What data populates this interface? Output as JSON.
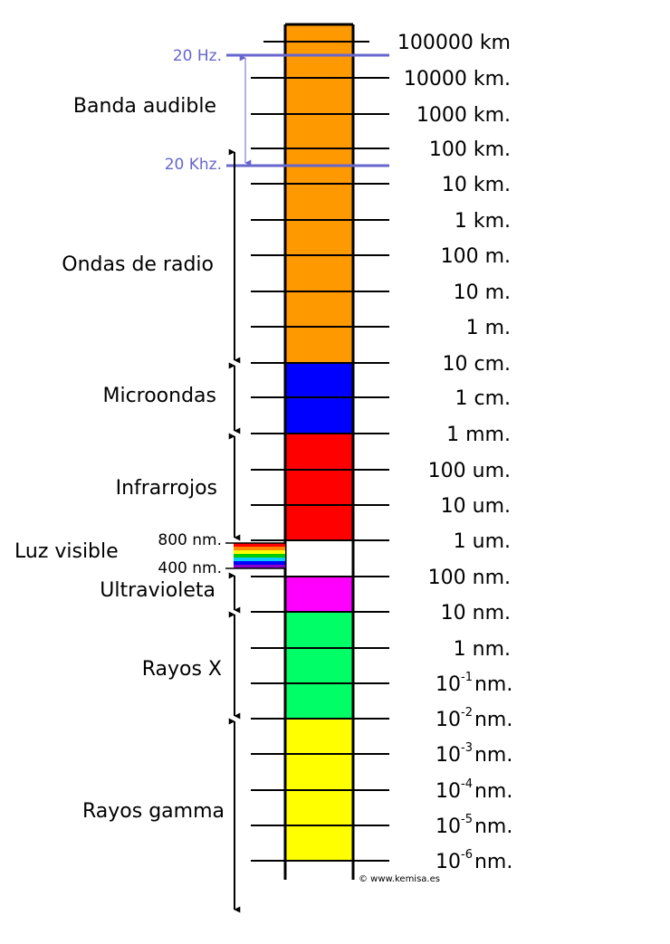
{
  "colors": {
    "radio": "#ff9900",
    "microwave": "#0000ff",
    "infrared": "#ff0000",
    "visible": "#ffffff",
    "ultraviolet": "#ff00ff",
    "xray": "#00ff66",
    "gamma": "#ffff00",
    "audio": "#6666cc",
    "line": "#000000"
  },
  "scale": [
    {
      "base": "100000 km",
      "exp": "",
      "unit": ""
    },
    {
      "base": "10000 km.",
      "exp": "",
      "unit": ""
    },
    {
      "base": "1000 km.",
      "exp": "",
      "unit": ""
    },
    {
      "base": "100 km.",
      "exp": "",
      "unit": ""
    },
    {
      "base": "10 km.",
      "exp": "",
      "unit": ""
    },
    {
      "base": "1 km.",
      "exp": "",
      "unit": ""
    },
    {
      "base": "100 m.",
      "exp": "",
      "unit": ""
    },
    {
      "base": "10 m.",
      "exp": "",
      "unit": ""
    },
    {
      "base": "1 m.",
      "exp": "",
      "unit": ""
    },
    {
      "base": "10 cm.",
      "exp": "",
      "unit": ""
    },
    {
      "base": "1 cm.",
      "exp": "",
      "unit": ""
    },
    {
      "base": "1 mm.",
      "exp": "",
      "unit": ""
    },
    {
      "base": "100 um.",
      "exp": "",
      "unit": ""
    },
    {
      "base": "10 um.",
      "exp": "",
      "unit": ""
    },
    {
      "base": "1 um.",
      "exp": "",
      "unit": ""
    },
    {
      "base": "100 nm.",
      "exp": "",
      "unit": ""
    },
    {
      "base": "10 nm.",
      "exp": "",
      "unit": ""
    },
    {
      "base": "1 nm.",
      "exp": "",
      "unit": ""
    },
    {
      "base": "10",
      "exp": "-1",
      "unit": "nm."
    },
    {
      "base": "10",
      "exp": "-2",
      "unit": "nm."
    },
    {
      "base": "10",
      "exp": "-3",
      "unit": "nm."
    },
    {
      "base": "10",
      "exp": "-4",
      "unit": "nm."
    },
    {
      "base": "10",
      "exp": "-5",
      "unit": "nm."
    },
    {
      "base": "10",
      "exp": "-6",
      "unit": "nm."
    }
  ],
  "regions": {
    "audio": "Banda audible",
    "radio": "Ondas de radio",
    "microwave": "Microondas",
    "infrared": "Infrarrojos",
    "visible": "Luz visible",
    "ultraviolet": "Ultravioleta",
    "xray": "Rayos X",
    "gamma": "Rayos gamma"
  },
  "markers": {
    "audio_low": "20 Hz.",
    "audio_high": "20 Khz.",
    "visible_high": "800 nm.",
    "visible_low": "400 nm."
  },
  "spectrum_colors": [
    "#ff0000",
    "#ff8800",
    "#ffff00",
    "#00cc00",
    "#00ccff",
    "#0000ff",
    "#8800cc"
  ],
  "credit": "© www.kemisa.es"
}
